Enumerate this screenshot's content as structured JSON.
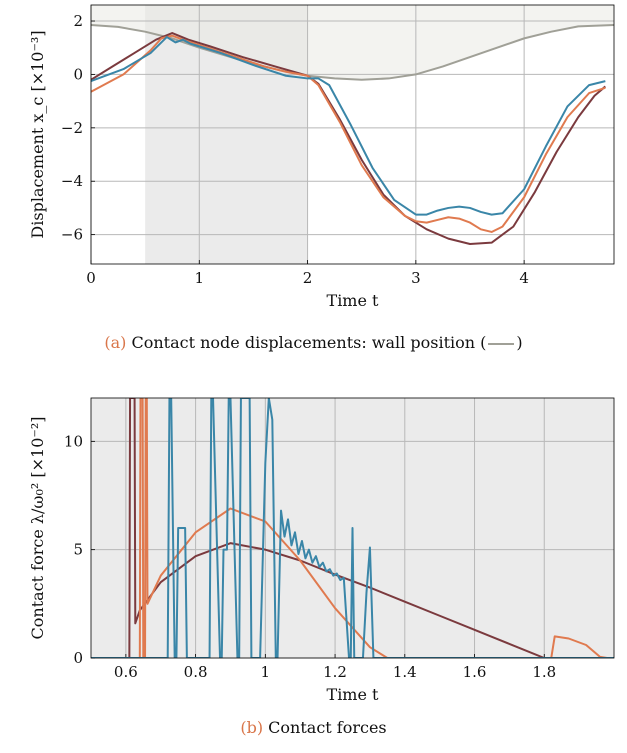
{
  "colors": {
    "blue": "#3a86a8",
    "orange": "#e07a4f",
    "maroon": "#7b3a3e",
    "wall": "#a0a097",
    "shade_dark": "#ebebeb",
    "shade_light": "#f4f4f2",
    "caption_tag": "#d9764a"
  },
  "chart_data": [
    {
      "type": "line",
      "xlabel": "Time t",
      "ylabel": "Displacement x_c",
      "ylabel_scale": "[×10⁻³]",
      "xlim": [
        0,
        4.83
      ],
      "ylim": [
        -7.1,
        2.6
      ],
      "xticks": [
        "0",
        "1",
        "2",
        "3",
        "4"
      ],
      "yticks": [
        "2",
        "0",
        "−2",
        "−4",
        "−6"
      ],
      "grid": true,
      "shaded_region": [
        0.5,
        2.0
      ],
      "series": [
        {
          "color": "blue",
          "x": [
            0,
            0.3,
            0.55,
            0.7,
            0.78,
            0.85,
            0.92,
            1.0,
            1.2,
            1.5,
            1.8,
            2.0,
            2.1,
            2.2,
            2.4,
            2.6,
            2.8,
            3.0,
            3.1,
            3.2,
            3.3,
            3.4,
            3.5,
            3.6,
            3.7,
            3.8,
            4.0,
            4.2,
            4.4,
            4.6,
            4.75
          ],
          "y": [
            -0.25,
            0.2,
            0.8,
            1.4,
            1.2,
            1.3,
            1.15,
            1.05,
            0.8,
            0.35,
            -0.05,
            -0.15,
            -0.15,
            -0.4,
            -1.9,
            -3.5,
            -4.7,
            -5.25,
            -5.25,
            -5.1,
            -5.0,
            -4.95,
            -5.0,
            -5.15,
            -5.25,
            -5.2,
            -4.3,
            -2.7,
            -1.2,
            -0.4,
            -0.25
          ]
        },
        {
          "color": "orange",
          "x": [
            0,
            0.3,
            0.55,
            0.65,
            0.75,
            0.85,
            1.0,
            1.3,
            1.6,
            1.8,
            2.0,
            2.1,
            2.3,
            2.5,
            2.7,
            2.9,
            3.0,
            3.1,
            3.2,
            3.3,
            3.4,
            3.5,
            3.6,
            3.7,
            3.8,
            4.0,
            4.2,
            4.4,
            4.6,
            4.75
          ],
          "y": [
            -0.65,
            0.0,
            0.9,
            1.35,
            1.45,
            1.3,
            1.1,
            0.7,
            0.3,
            0.1,
            -0.05,
            -0.4,
            -1.8,
            -3.4,
            -4.6,
            -5.3,
            -5.5,
            -5.55,
            -5.45,
            -5.35,
            -5.4,
            -5.55,
            -5.8,
            -5.9,
            -5.7,
            -4.6,
            -3.0,
            -1.6,
            -0.7,
            -0.5
          ]
        },
        {
          "color": "maroon",
          "x": [
            0,
            0.2,
            0.4,
            0.6,
            0.75,
            0.9,
            1.1,
            1.4,
            1.7,
            2.0,
            2.1,
            2.3,
            2.5,
            2.7,
            2.9,
            3.1,
            3.3,
            3.5,
            3.7,
            3.9,
            4.1,
            4.3,
            4.5,
            4.65,
            4.75
          ],
          "y": [
            -0.2,
            0.3,
            0.8,
            1.3,
            1.55,
            1.3,
            1.05,
            0.65,
            0.3,
            -0.05,
            -0.35,
            -1.7,
            -3.2,
            -4.5,
            -5.3,
            -5.8,
            -6.15,
            -6.35,
            -6.3,
            -5.7,
            -4.4,
            -2.9,
            -1.6,
            -0.8,
            -0.45
          ]
        },
        {
          "color": "wall",
          "x": [
            0,
            0.25,
            0.5,
            0.75,
            1.0,
            1.25,
            1.5,
            1.75,
            2.0,
            2.25,
            2.5,
            2.75,
            3.0,
            3.25,
            3.5,
            3.75,
            4.0,
            4.25,
            4.5,
            4.83
          ],
          "y": [
            1.85,
            1.78,
            1.6,
            1.35,
            1.0,
            0.7,
            0.4,
            0.15,
            -0.05,
            -0.15,
            -0.2,
            -0.15,
            0.0,
            0.3,
            0.65,
            1.0,
            1.35,
            1.6,
            1.8,
            1.85
          ]
        }
      ],
      "caption_tag": "(a)",
      "caption_text": "Contact node displacements: wall position (",
      "caption_end": ")"
    },
    {
      "type": "line",
      "xlabel": "Time t",
      "ylabel": "Contact force λ/ω₀²",
      "ylabel_scale": "[×10⁻²]",
      "xlim": [
        0.5,
        2.0
      ],
      "ylim": [
        0,
        12
      ],
      "xticks": [
        "0.6",
        "0.8",
        "1",
        "1.2",
        "1.4",
        "1.6",
        "1.8"
      ],
      "yticks": [
        "10",
        "5",
        "0"
      ],
      "grid": true,
      "series": [
        {
          "color": "maroon",
          "x": [
            0.5,
            0.61,
            0.612,
            0.625,
            0.627,
            0.64,
            0.7,
            0.8,
            0.9,
            1.0,
            1.1,
            1.2,
            1.3,
            1.4,
            1.5,
            1.6,
            1.7,
            1.8,
            1.98
          ],
          "y": [
            0,
            0,
            12,
            12,
            1.6,
            2.2,
            3.5,
            4.7,
            5.3,
            5.0,
            4.5,
            3.85,
            3.25,
            2.6,
            1.95,
            1.3,
            0.65,
            0,
            0
          ]
        },
        {
          "color": "orange",
          "x": [
            0.5,
            0.64,
            0.642,
            0.648,
            0.65,
            0.655,
            0.657,
            0.66,
            0.662,
            0.7,
            0.8,
            0.9,
            1.0,
            1.1,
            1.2,
            1.3,
            1.35,
            1.8,
            1.82,
            1.83,
            1.87,
            1.92,
            1.96,
            1.98
          ],
          "y": [
            0,
            0,
            12,
            12,
            0,
            0,
            12,
            12,
            2.5,
            3.8,
            5.8,
            6.9,
            6.3,
            4.5,
            2.3,
            0.5,
            0,
            0,
            0,
            1.0,
            0.9,
            0.6,
            0.05,
            0
          ]
        },
        {
          "color": "blue",
          "x": [
            0.5,
            0.72,
            0.725,
            0.73,
            0.74,
            0.745,
            0.75,
            0.77,
            0.775,
            0.78,
            0.84,
            0.845,
            0.85,
            0.87,
            0.875,
            0.88,
            0.89,
            0.895,
            0.9,
            0.92,
            0.925,
            0.93,
            0.955,
            0.96,
            0.965,
            0.985,
            0.99,
            1.0,
            1.01,
            1.02,
            1.03,
            1.035,
            1.045,
            1.055,
            1.065,
            1.075,
            1.085,
            1.095,
            1.105,
            1.115,
            1.125,
            1.135,
            1.145,
            1.155,
            1.165,
            1.175,
            1.185,
            1.195,
            1.205,
            1.215,
            1.225,
            1.24,
            1.245,
            1.25,
            1.255,
            1.26,
            1.27,
            1.28,
            1.29,
            1.3,
            1.31,
            1.32,
            2.0
          ],
          "y": [
            0,
            0,
            12,
            12,
            0,
            0,
            6,
            6,
            0,
            0,
            0,
            12,
            12,
            0,
            0,
            5,
            5,
            12,
            12,
            0,
            0,
            12,
            12,
            0,
            0,
            0,
            3,
            9,
            12,
            11,
            0,
            0,
            6.8,
            5.6,
            6.4,
            5.2,
            5.8,
            4.8,
            5.4,
            4.6,
            5.0,
            4.4,
            4.7,
            4.2,
            4.4,
            4.0,
            4.1,
            3.8,
            3.9,
            3.6,
            3.7,
            0,
            0,
            6.0,
            0,
            0,
            0,
            0,
            3.0,
            5.1,
            0,
            0,
            0
          ]
        }
      ],
      "caption_tag": "(b)",
      "caption_text": "Contact forces"
    }
  ]
}
